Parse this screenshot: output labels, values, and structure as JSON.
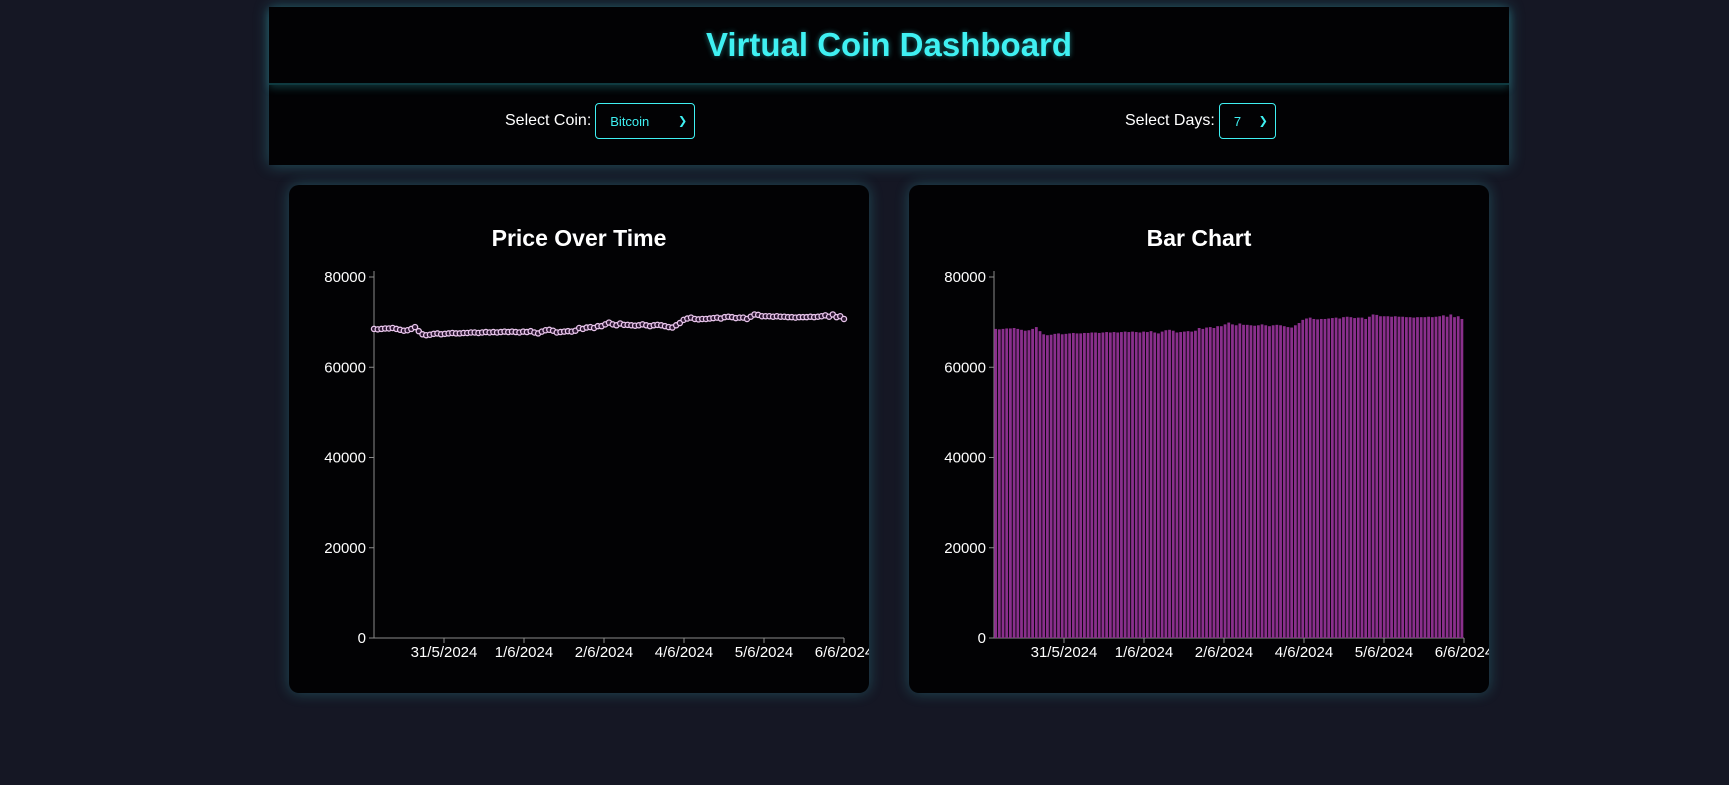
{
  "header": {
    "title": "Virtual Coin Dashboard"
  },
  "controls": {
    "coin": {
      "label": "Select Coin:",
      "value": "Bitcoin"
    },
    "days": {
      "label": "Select Days:",
      "value": "7"
    }
  },
  "colors": {
    "accent": "#3ff0f2",
    "line_marker_stroke": "#e9c6ec",
    "bar_fill": "#8a2f8c"
  },
  "chart_data": [
    {
      "type": "line",
      "title": "Price Over Time",
      "ylim": [
        0,
        80000
      ],
      "y_ticks": [
        "0",
        "20000",
        "40000",
        "60000",
        "80000"
      ],
      "x_tick_labels": [
        "31/5/2024",
        "1/6/2024",
        "2/6/2024",
        "4/6/2024",
        "5/6/2024",
        "6/6/2024"
      ],
      "values": [
        68500,
        68400,
        68500,
        68600,
        68600,
        68700,
        68500,
        68300,
        68100,
        68200,
        68500,
        68900,
        68000,
        67300,
        67100,
        67200,
        67400,
        67500,
        67300,
        67400,
        67500,
        67600,
        67500,
        67500,
        67600,
        67600,
        67700,
        67700,
        67600,
        67700,
        67800,
        67700,
        67800,
        67700,
        67800,
        67900,
        67800,
        67900,
        67800,
        67700,
        67900,
        67800,
        68000,
        67700,
        67500,
        67900,
        68200,
        68300,
        68100,
        67700,
        67800,
        67900,
        68000,
        67900,
        68100,
        68700,
        68500,
        68800,
        68900,
        68700,
        69100,
        69100,
        69500,
        69900,
        69500,
        69300,
        69700,
        69400,
        69400,
        69300,
        69200,
        69300,
        69500,
        69300,
        69100,
        69300,
        69400,
        69300,
        69100,
        68900,
        68800,
        69300,
        69800,
        70500,
        70800,
        71000,
        70700,
        70600,
        70700,
        70700,
        70800,
        70900,
        71000,
        70800,
        71100,
        71200,
        71100,
        70900,
        71000,
        71000,
        70700,
        71200,
        71700,
        71600,
        71300,
        71300,
        71300,
        71200,
        71300,
        71200,
        71200,
        71100,
        71100,
        71000,
        71100,
        71100,
        71100,
        71200,
        71100,
        71200,
        71300,
        71500,
        71200,
        71700,
        71100,
        71300,
        70700
      ],
      "xlabel": "",
      "ylabel": ""
    },
    {
      "type": "bar",
      "title": "Bar Chart",
      "ylim": [
        0,
        80000
      ],
      "y_ticks": [
        "0",
        "20000",
        "40000",
        "60000",
        "80000"
      ],
      "x_tick_labels": [
        "31/5/2024",
        "1/6/2024",
        "2/6/2024",
        "4/6/2024",
        "5/6/2024",
        "6/6/2024"
      ],
      "values": [
        68500,
        68400,
        68500,
        68600,
        68600,
        68700,
        68500,
        68300,
        68100,
        68200,
        68500,
        68900,
        68000,
        67300,
        67100,
        67200,
        67400,
        67500,
        67300,
        67400,
        67500,
        67600,
        67500,
        67500,
        67600,
        67600,
        67700,
        67700,
        67600,
        67700,
        67800,
        67700,
        67800,
        67700,
        67800,
        67900,
        67800,
        67900,
        67800,
        67700,
        67900,
        67800,
        68000,
        67700,
        67500,
        67900,
        68200,
        68300,
        68100,
        67700,
        67800,
        67900,
        68000,
        67900,
        68100,
        68700,
        68500,
        68800,
        68900,
        68700,
        69100,
        69100,
        69500,
        69900,
        69500,
        69300,
        69700,
        69400,
        69400,
        69300,
        69200,
        69300,
        69500,
        69300,
        69100,
        69300,
        69400,
        69300,
        69100,
        68900,
        68800,
        69300,
        69800,
        70500,
        70800,
        71000,
        70700,
        70600,
        70700,
        70700,
        70800,
        70900,
        71000,
        70800,
        71100,
        71200,
        71100,
        70900,
        71000,
        71000,
        70700,
        71200,
        71700,
        71600,
        71300,
        71300,
        71300,
        71200,
        71300,
        71200,
        71200,
        71100,
        71100,
        71000,
        71100,
        71100,
        71100,
        71200,
        71100,
        71200,
        71300,
        71500,
        71200,
        71700,
        71100,
        71300,
        70700
      ],
      "xlabel": "",
      "ylabel": ""
    }
  ]
}
